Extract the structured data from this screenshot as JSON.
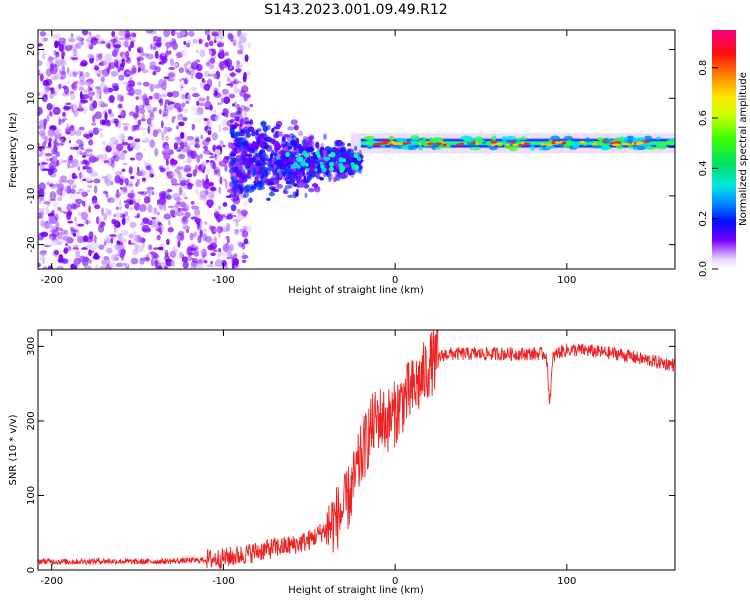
{
  "title": "S143.2023.001.09.49.R12",
  "colors": {
    "snr_line": "#ee2222",
    "frame": "#000000"
  },
  "chart_data": [
    {
      "type": "heatmap",
      "xlabel": "Height of straight line (km)",
      "ylabel": "Frequency (Hz)",
      "xlim": [
        -208,
        163
      ],
      "ylim": [
        -25,
        24
      ],
      "xticks": [
        -200,
        -100,
        0,
        100
      ],
      "xtick_labels": [
        "-200",
        "-100",
        "0",
        "100"
      ],
      "yticks": [
        20,
        10,
        0,
        -10,
        -20
      ],
      "ytick_labels": [
        "20",
        "10",
        "0",
        "-10",
        "-20"
      ],
      "colorbar": {
        "label": "Normalized spectral amplitude",
        "range": [
          0.0,
          0.95
        ],
        "ticks": [
          0.0,
          0.2,
          0.4,
          0.6,
          0.8
        ],
        "tick_labels": [
          "0.0",
          "0.2",
          "0.4",
          "0.6",
          "0.8"
        ]
      },
      "features": {
        "scattered_noise_region_km": [
          -208,
          -95
        ],
        "transition_region_km": [
          -95,
          -20
        ],
        "narrow_band_region_km": [
          -20,
          163
        ],
        "narrow_band_center_hz": 0.8,
        "narrow_band_peak_amplitude": 0.9
      }
    },
    {
      "type": "line",
      "xlabel": "Height of straight line (km)",
      "ylabel": "SNR (10 * v/v)",
      "xlim": [
        -208,
        163
      ],
      "ylim": [
        0,
        322
      ],
      "xticks": [
        -200,
        -100,
        0,
        100
      ],
      "xtick_labels": [
        "-200",
        "-100",
        "0",
        "100"
      ],
      "yticks": [
        0,
        100,
        200,
        300
      ],
      "ytick_labels": [
        "0",
        "100",
        "200",
        "300"
      ],
      "series": [
        {
          "name": "SNR",
          "x": [
            -208,
            -190,
            -170,
            -150,
            -130,
            -115,
            -100,
            -90,
            -80,
            -70,
            -60,
            -50,
            -40,
            -30,
            -25,
            -20,
            -15,
            -10,
            -5,
            0,
            5,
            10,
            15,
            20,
            25,
            30,
            40,
            50,
            60,
            70,
            80,
            88,
            90,
            92,
            95,
            100,
            110,
            120,
            130,
            140,
            150,
            163
          ],
          "values": [
            12,
            11,
            12,
            11,
            12,
            13,
            16,
            20,
            25,
            30,
            33,
            40,
            55,
            80,
            110,
            150,
            185,
            205,
            200,
            210,
            230,
            240,
            255,
            275,
            285,
            290,
            290,
            290,
            290,
            290,
            290,
            290,
            225,
            285,
            292,
            295,
            295,
            292,
            290,
            285,
            280,
            275
          ]
        }
      ]
    }
  ]
}
